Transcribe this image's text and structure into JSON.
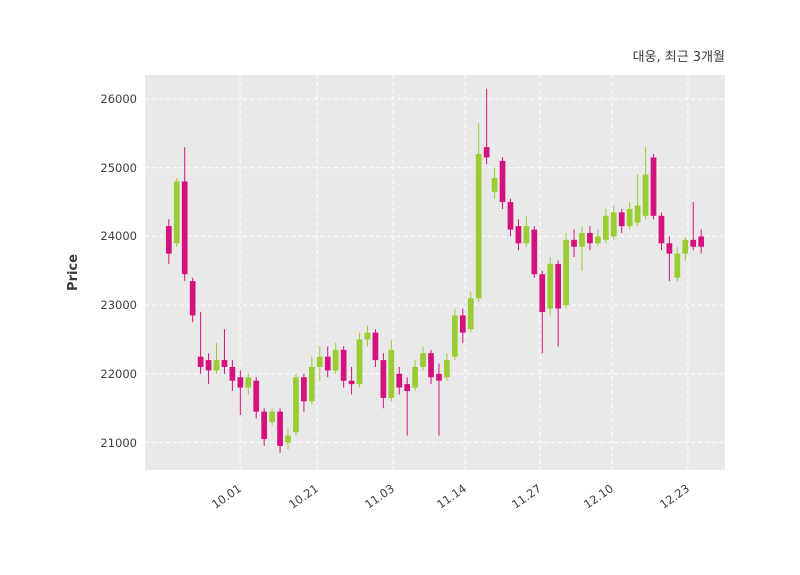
{
  "header": {
    "title": "대웅, 최근 3개월"
  },
  "chart_data": {
    "type": "candlestick",
    "title": "대웅, 최근 3개월",
    "xlabel": "",
    "ylabel": "Price",
    "ylim": [
      20600,
      26350
    ],
    "yticks": [
      21000,
      22000,
      23000,
      24000,
      25000,
      26000
    ],
    "xticks": [
      {
        "label": "10.01",
        "pos": 0.164
      },
      {
        "label": "10.21",
        "pos": 0.297
      },
      {
        "label": "11.03",
        "pos": 0.428
      },
      {
        "label": "11.14",
        "pos": 0.552
      },
      {
        "label": "11.27",
        "pos": 0.681
      },
      {
        "label": "12.10",
        "pos": 0.805
      },
      {
        "label": "12.23",
        "pos": 0.936
      }
    ],
    "grid": true,
    "legend": "none",
    "colors": {
      "up": "#9acd32",
      "down": "#d4127e",
      "plot_bg": "#e9e9e9",
      "grid": "#ffffff",
      "text": "#3a3a3a"
    },
    "candles_format": [
      "open",
      "high",
      "low",
      "close"
    ],
    "candles": [
      [
        24150,
        24250,
        23600,
        23750
      ],
      [
        23900,
        24850,
        23850,
        24800
      ],
      [
        24800,
        25300,
        23350,
        23450
      ],
      [
        23350,
        23400,
        22750,
        22850
      ],
      [
        22250,
        22900,
        22000,
        22100
      ],
      [
        22200,
        22300,
        21850,
        22050
      ],
      [
        22050,
        22450,
        22000,
        22200
      ],
      [
        22200,
        22650,
        22000,
        22100
      ],
      [
        22100,
        22200,
        21750,
        21900
      ],
      [
        21950,
        22050,
        21400,
        21800
      ],
      [
        21800,
        22000,
        21700,
        21950
      ],
      [
        21900,
        21950,
        21350,
        21450
      ],
      [
        21450,
        21500,
        20950,
        21050
      ],
      [
        21300,
        21500,
        21250,
        21450
      ],
      [
        21450,
        21500,
        20850,
        20950
      ],
      [
        21000,
        21200,
        20900,
        21100
      ],
      [
        21150,
        22000,
        21100,
        21950
      ],
      [
        21950,
        22000,
        21450,
        21600
      ],
      [
        21600,
        22250,
        21550,
        22100
      ],
      [
        22100,
        22400,
        21900,
        22250
      ],
      [
        22250,
        22400,
        21950,
        22050
      ],
      [
        22050,
        22450,
        22000,
        22350
      ],
      [
        22350,
        22400,
        21800,
        21900
      ],
      [
        21900,
        22100,
        21700,
        21850
      ],
      [
        21850,
        22600,
        21800,
        22500
      ],
      [
        22500,
        22700,
        22400,
        22600
      ],
      [
        22600,
        22650,
        22100,
        22200
      ],
      [
        22200,
        22300,
        21500,
        21650
      ],
      [
        21650,
        22500,
        21600,
        22350
      ],
      [
        22000,
        22100,
        21700,
        21800
      ],
      [
        21850,
        21950,
        21100,
        21750
      ],
      [
        21800,
        22200,
        21750,
        22100
      ],
      [
        22100,
        22400,
        22050,
        22300
      ],
      [
        22300,
        22350,
        21850,
        21950
      ],
      [
        22000,
        22150,
        21100,
        21900
      ],
      [
        21950,
        22300,
        21900,
        22200
      ],
      [
        22250,
        22950,
        22200,
        22850
      ],
      [
        22850,
        22950,
        22450,
        22600
      ],
      [
        22650,
        23200,
        22600,
        23100
      ],
      [
        23100,
        25650,
        23050,
        25200
      ],
      [
        25300,
        26150,
        25050,
        25150
      ],
      [
        24650,
        25000,
        24550,
        24850
      ],
      [
        25100,
        25150,
        24400,
        24500
      ],
      [
        24500,
        24550,
        24000,
        24100
      ],
      [
        24150,
        24250,
        23800,
        23900
      ],
      [
        23900,
        24300,
        23850,
        24150
      ],
      [
        24100,
        24150,
        23400,
        23450
      ],
      [
        23450,
        23500,
        22300,
        22900
      ],
      [
        22950,
        23700,
        22850,
        23600
      ],
      [
        23600,
        23650,
        22400,
        22950
      ],
      [
        23000,
        24050,
        22950,
        23950
      ],
      [
        23950,
        24100,
        23700,
        23850
      ],
      [
        23850,
        24150,
        23500,
        24050
      ],
      [
        24050,
        24150,
        23800,
        23900
      ],
      [
        23900,
        24100,
        23850,
        24000
      ],
      [
        23950,
        24400,
        23900,
        24300
      ],
      [
        24000,
        24450,
        23950,
        24350
      ],
      [
        24350,
        24400,
        24050,
        24150
      ],
      [
        24150,
        24500,
        24100,
        24400
      ],
      [
        24200,
        24900,
        24150,
        24450
      ],
      [
        24300,
        25300,
        24250,
        24900
      ],
      [
        25150,
        25200,
        24250,
        24300
      ],
      [
        24300,
        24350,
        23800,
        23900
      ],
      [
        23900,
        24000,
        23350,
        23750
      ],
      [
        23400,
        23850,
        23350,
        23750
      ],
      [
        23750,
        24000,
        23650,
        23950
      ],
      [
        23950,
        24500,
        23800,
        23850
      ],
      [
        24000,
        24100,
        23750,
        23850
      ]
    ]
  }
}
